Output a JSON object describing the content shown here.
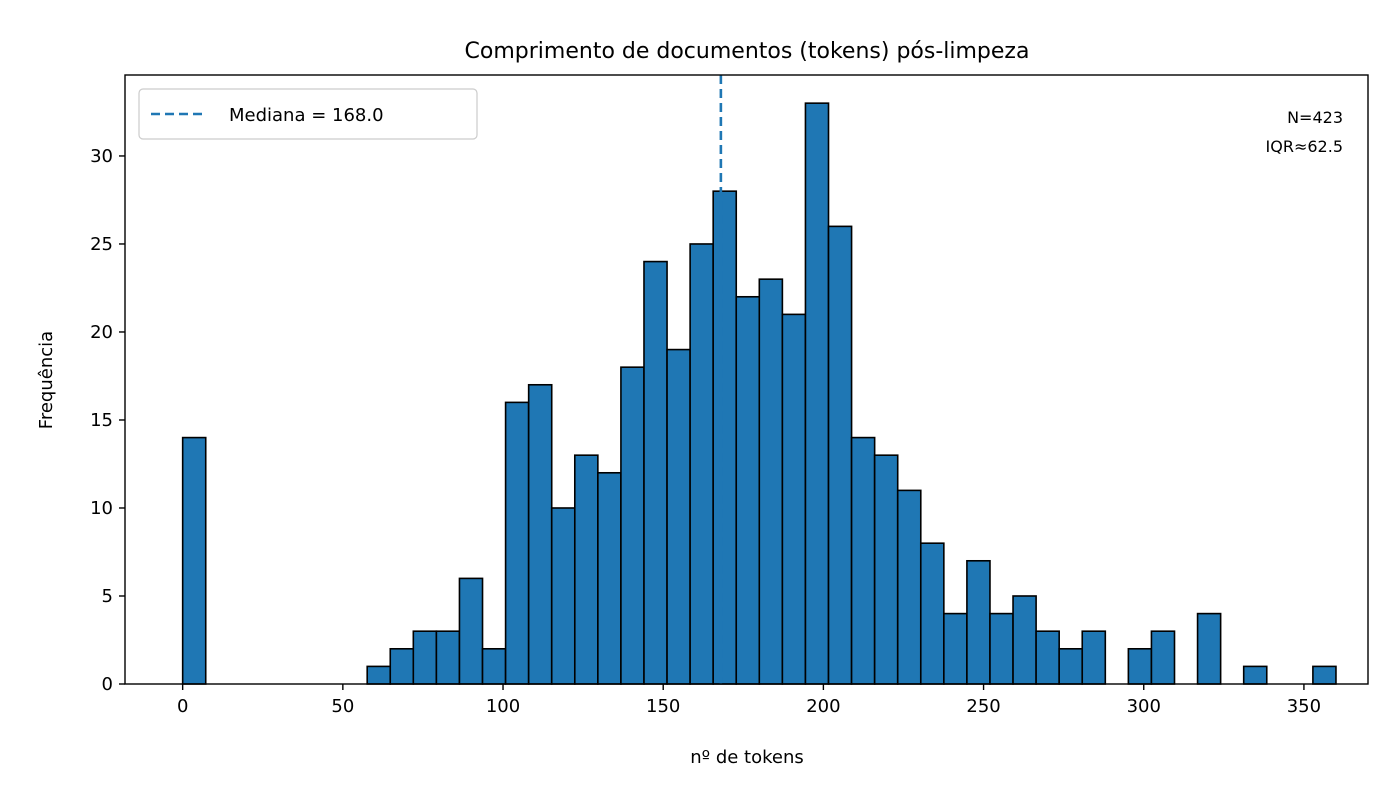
{
  "chart_data": {
    "type": "bar",
    "title": "Comprimento de documentos (tokens) pós-limpeza",
    "xlabel": "nº de tokens",
    "ylabel": "Frequência",
    "xlim": [
      -18,
      370
    ],
    "ylim": [
      0,
      34.6
    ],
    "bin_width": 7.2,
    "bins": [
      {
        "x0": 0.0,
        "count": 14
      },
      {
        "x0": 57.6,
        "count": 1
      },
      {
        "x0": 64.8,
        "count": 2
      },
      {
        "x0": 72.0,
        "count": 3
      },
      {
        "x0": 79.2,
        "count": 3
      },
      {
        "x0": 86.4,
        "count": 6
      },
      {
        "x0": 93.6,
        "count": 2
      },
      {
        "x0": 100.8,
        "count": 16
      },
      {
        "x0": 108.0,
        "count": 17
      },
      {
        "x0": 115.2,
        "count": 10
      },
      {
        "x0": 122.4,
        "count": 13
      },
      {
        "x0": 129.6,
        "count": 12
      },
      {
        "x0": 136.8,
        "count": 18
      },
      {
        "x0": 144.0,
        "count": 24
      },
      {
        "x0": 151.2,
        "count": 19
      },
      {
        "x0": 158.4,
        "count": 25
      },
      {
        "x0": 165.6,
        "count": 28
      },
      {
        "x0": 172.8,
        "count": 22
      },
      {
        "x0": 180.0,
        "count": 23
      },
      {
        "x0": 187.2,
        "count": 21
      },
      {
        "x0": 194.4,
        "count": 33
      },
      {
        "x0": 201.6,
        "count": 26
      },
      {
        "x0": 208.8,
        "count": 14
      },
      {
        "x0": 216.0,
        "count": 13
      },
      {
        "x0": 223.2,
        "count": 11
      },
      {
        "x0": 230.4,
        "count": 8
      },
      {
        "x0": 237.6,
        "count": 4
      },
      {
        "x0": 244.8,
        "count": 7
      },
      {
        "x0": 252.0,
        "count": 4
      },
      {
        "x0": 259.2,
        "count": 5
      },
      {
        "x0": 266.4,
        "count": 3
      },
      {
        "x0": 273.6,
        "count": 2
      },
      {
        "x0": 280.8,
        "count": 3
      },
      {
        "x0": 295.2,
        "count": 2
      },
      {
        "x0": 302.4,
        "count": 3
      },
      {
        "x0": 316.8,
        "count": 4
      },
      {
        "x0": 331.2,
        "count": 1
      },
      {
        "x0": 352.8,
        "count": 1
      }
    ],
    "xticks": [
      0,
      50,
      100,
      150,
      200,
      250,
      300,
      350
    ],
    "yticks": [
      0,
      5,
      10,
      15,
      20,
      25,
      30
    ],
    "median": 168.0,
    "legend": {
      "position": "top-left",
      "entries": [
        {
          "label": "Mediana = 168.0",
          "style": "dashed"
        }
      ]
    },
    "annotations": [
      "N=423",
      "IQR≈62.5"
    ],
    "colors": {
      "bar": "#1f77b4",
      "bar_edge": "#000000",
      "median_line": "#1f77b4",
      "axes": "#000000"
    },
    "grid": false
  }
}
